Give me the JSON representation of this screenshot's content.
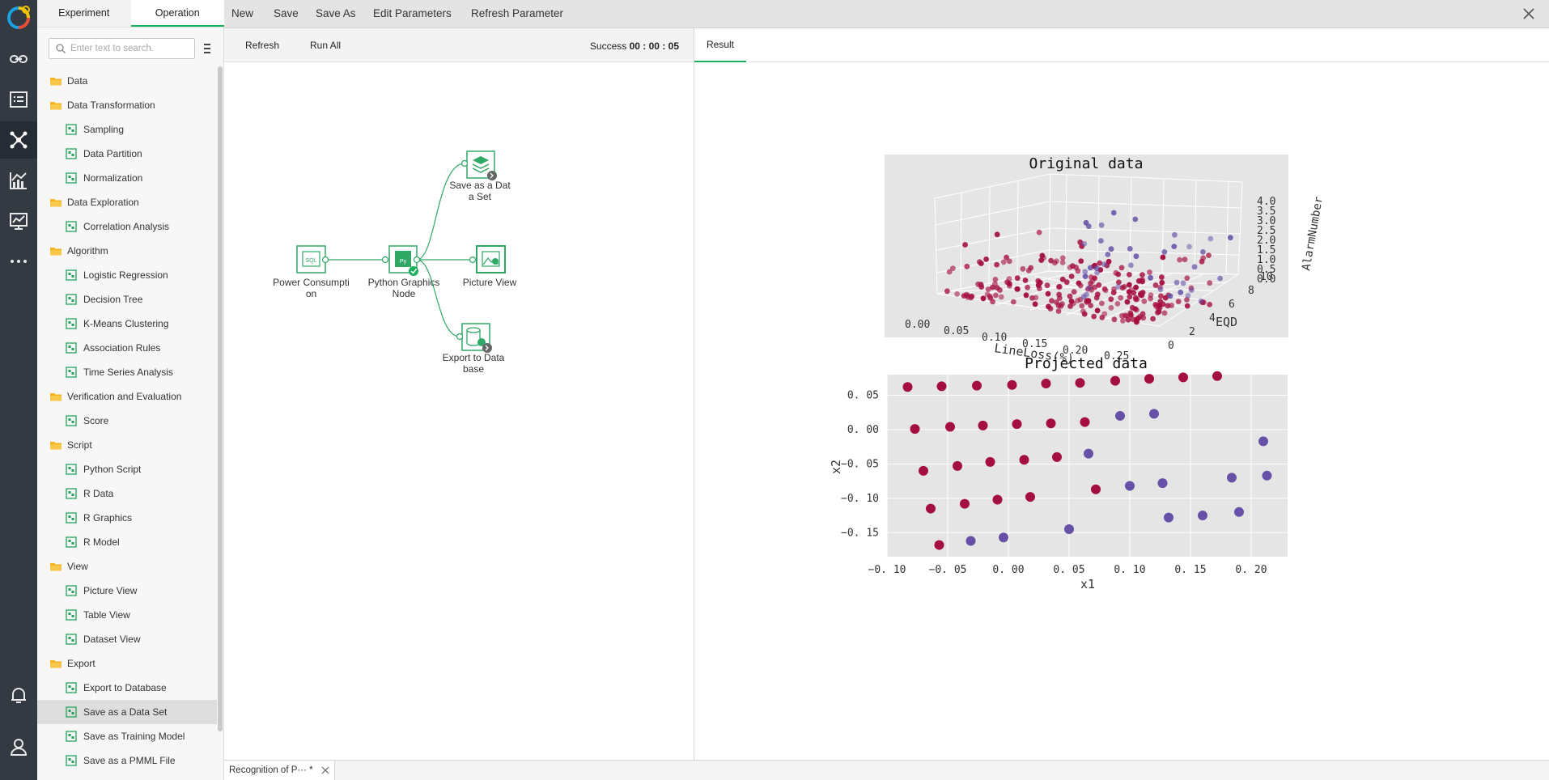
{
  "left_tabs": [
    "Experiment",
    "Operation"
  ],
  "search": {
    "placeholder": "Enter text to search."
  },
  "tree": [
    {
      "type": "folder",
      "label": "Data"
    },
    {
      "type": "folder",
      "label": "Data Transformation"
    },
    {
      "type": "leaf",
      "label": "Sampling",
      "icon": "sampling-icon"
    },
    {
      "type": "leaf",
      "label": "Data Partition",
      "icon": "data-partition-icon"
    },
    {
      "type": "leaf",
      "label": "Normalization",
      "icon": "normalization-icon"
    },
    {
      "type": "folder",
      "label": "Data Exploration"
    },
    {
      "type": "leaf",
      "label": "Correlation Analysis",
      "icon": "correlation-icon"
    },
    {
      "type": "folder",
      "label": "Algorithm"
    },
    {
      "type": "leaf",
      "label": "Logistic Regression",
      "icon": "logistic-regression-icon"
    },
    {
      "type": "leaf",
      "label": "Decision Tree",
      "icon": "decision-tree-icon"
    },
    {
      "type": "leaf",
      "label": "K-Means Clustering",
      "icon": "kmeans-icon"
    },
    {
      "type": "leaf",
      "label": "Association Rules",
      "icon": "association-rules-icon"
    },
    {
      "type": "leaf",
      "label": "Time Series Analysis",
      "icon": "time-series-icon"
    },
    {
      "type": "folder",
      "label": "Verification and Evaluation"
    },
    {
      "type": "leaf",
      "label": "Score",
      "icon": "score-icon"
    },
    {
      "type": "folder",
      "label": "Script"
    },
    {
      "type": "leaf",
      "label": "Python Script",
      "icon": "python-script-icon"
    },
    {
      "type": "leaf",
      "label": "R Data",
      "icon": "r-data-icon"
    },
    {
      "type": "leaf",
      "label": "R Graphics",
      "icon": "r-graphics-icon"
    },
    {
      "type": "leaf",
      "label": "R Model",
      "icon": "r-model-icon"
    },
    {
      "type": "folder",
      "label": "View"
    },
    {
      "type": "leaf",
      "label": "Picture View",
      "icon": "picture-view-icon"
    },
    {
      "type": "leaf",
      "label": "Table View",
      "icon": "table-view-icon"
    },
    {
      "type": "leaf",
      "label": "Dataset View",
      "icon": "dataset-view-icon"
    },
    {
      "type": "folder",
      "label": "Export"
    },
    {
      "type": "leaf",
      "label": "Export to Database",
      "icon": "export-database-icon"
    },
    {
      "type": "leaf",
      "label": "Save as a Data Set",
      "icon": "save-dataset-icon",
      "selected": true
    },
    {
      "type": "leaf",
      "label": "Save as Training Model",
      "icon": "save-training-model-icon"
    },
    {
      "type": "leaf",
      "label": "Save as a PMML File",
      "icon": "save-pmml-icon"
    }
  ],
  "toolbar": {
    "new": "New",
    "save": "Save",
    "save_as": "Save As",
    "edit_params": "Edit Parameters",
    "refresh_param": "Refresh Parameter"
  },
  "canvas": {
    "refresh": "Refresh",
    "run_all": "Run All",
    "status_label": "Success",
    "status_time": "00 : 00 : 05",
    "nodes": {
      "power": "Power Consumpti\non",
      "python": "Python Graphics\nNode",
      "save_dataset": "Save as a Dat\na Set",
      "picture_view": "Picture View",
      "export_db": "Export to Data\nbase"
    }
  },
  "result": {
    "tab": "Result",
    "chart3d": {
      "title": "Original data",
      "xlabel": "LineLoss(%)",
      "ylabel": "EQD",
      "zlabel": "AlarmNumber",
      "xticks": [
        "0.00",
        "0.05",
        "0.10",
        "0.15",
        "0.20",
        "0.25"
      ],
      "yticks": [
        "0",
        "2",
        "4",
        "6",
        "8",
        "10"
      ],
      "zticks": [
        "0.0",
        "0.5",
        "1.0",
        "1.5",
        "2.0",
        "2.5",
        "3.0",
        "3.5",
        "4.0"
      ]
    },
    "chart2d": {
      "title": "Projected data",
      "xlabel": "x1",
      "ylabel": "x2",
      "xticks": [
        "−0. 10",
        "−0. 05",
        "0. 00",
        "0. 05",
        "0. 10",
        "0. 15",
        "0. 20"
      ],
      "yticks": [
        "0. 05",
        "0. 00",
        "−0. 05",
        "−0. 10",
        "−0. 15"
      ]
    }
  },
  "chart_data": [
    {
      "type": "scatter",
      "title": "Projected data",
      "xlabel": "x1",
      "ylabel": "x2",
      "xlim": [
        -0.1,
        0.23
      ],
      "ylim": [
        -0.185,
        0.08
      ],
      "grid": true,
      "series": [
        {
          "color": "#a50f3f",
          "points": [
            [
              -0.083,
              0.062
            ],
            [
              -0.055,
              0.063
            ],
            [
              -0.026,
              0.064
            ],
            [
              0.003,
              0.065
            ],
            [
              0.031,
              0.067
            ],
            [
              0.059,
              0.068
            ],
            [
              0.088,
              0.071
            ],
            [
              0.116,
              0.074
            ],
            [
              0.144,
              0.076
            ],
            [
              0.172,
              0.078
            ],
            [
              -0.077,
              0.001
            ],
            [
              -0.048,
              0.004
            ],
            [
              -0.021,
              0.006
            ],
            [
              0.007,
              0.008
            ],
            [
              0.035,
              0.009
            ],
            [
              0.063,
              0.011
            ],
            [
              -0.07,
              -0.06
            ],
            [
              -0.042,
              -0.053
            ],
            [
              -0.015,
              -0.047
            ],
            [
              0.013,
              -0.044
            ],
            [
              0.04,
              -0.04
            ],
            [
              -0.064,
              -0.115
            ],
            [
              -0.036,
              -0.108
            ],
            [
              -0.009,
              -0.102
            ],
            [
              0.018,
              -0.098
            ],
            [
              0.072,
              -0.087
            ],
            [
              -0.057,
              -0.168
            ]
          ]
        },
        {
          "color": "#6650a8",
          "points": [
            [
              0.092,
              0.02
            ],
            [
              0.12,
              0.023
            ],
            [
              0.066,
              -0.035
            ],
            [
              0.1,
              -0.082
            ],
            [
              0.127,
              -0.078
            ],
            [
              0.21,
              -0.017
            ],
            [
              0.213,
              -0.067
            ],
            [
              0.184,
              -0.07
            ],
            [
              0.19,
              -0.12
            ],
            [
              0.16,
              -0.125
            ],
            [
              0.132,
              -0.128
            ],
            [
              0.05,
              -0.145
            ],
            [
              -0.004,
              -0.157
            ],
            [
              -0.031,
              -0.162
            ]
          ]
        }
      ]
    },
    {
      "type": "scatter",
      "title": "Original data",
      "xlabel": "LineLoss(%)",
      "ylabel": "EQD",
      "zlabel": "AlarmNumber",
      "xlim": [
        0,
        0.27
      ],
      "ylim": [
        0,
        10
      ],
      "zlim": [
        0,
        4
      ]
    }
  ],
  "bottom_tab": "Recognition of P··· *"
}
